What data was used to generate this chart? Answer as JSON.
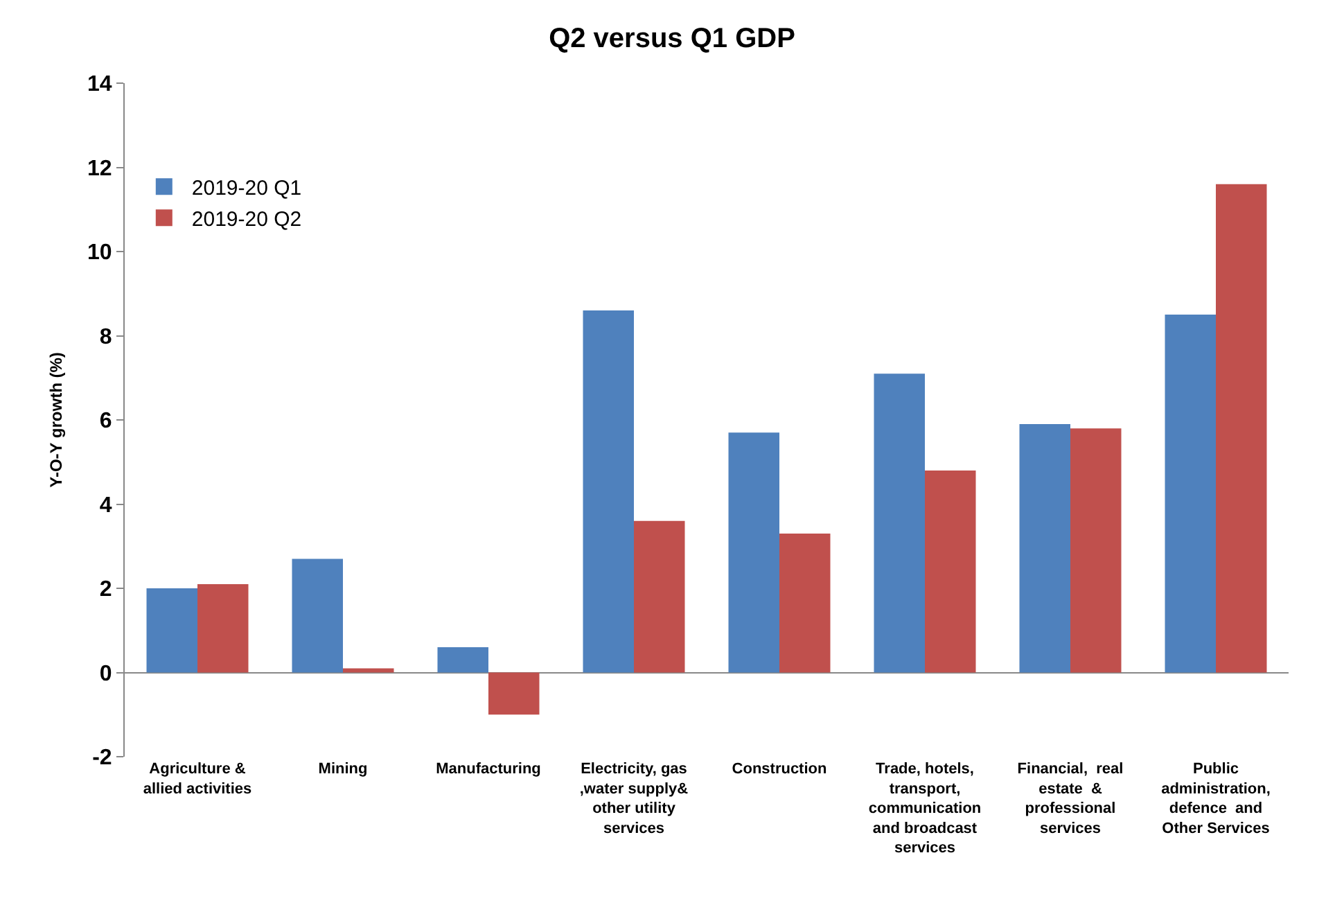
{
  "chart_data": {
    "type": "bar",
    "title": "Q2 versus Q1 GDP",
    "ylabel": "Y-O-Y growth (%)",
    "categories": [
      "Agriculture &\nallied activities",
      "Mining",
      "Manufacturing",
      "Electricity, gas\n,water supply&\nother utility\nservices",
      "Construction",
      "Trade, hotels,\ntransport,\ncommunication\nand broadcast\nservices",
      "Financial,  real\nestate  &\nprofessional\nservices",
      "Public\nadministration,\ndefence  and\nOther Services"
    ],
    "series": [
      {
        "name": "2019-20 Q1",
        "color": "#4f81bd",
        "values": [
          2.0,
          2.7,
          0.6,
          8.6,
          5.7,
          7.1,
          5.9,
          8.5
        ]
      },
      {
        "name": "2019-20 Q2",
        "color": "#c0504d",
        "values": [
          2.1,
          0.1,
          -1.0,
          3.6,
          3.3,
          4.8,
          5.8,
          11.6
        ]
      }
    ],
    "ylim": [
      -2,
      14
    ],
    "yticks": [
      -2,
      0,
      2,
      4,
      6,
      8,
      10,
      12,
      14
    ],
    "legend": "top left"
  }
}
